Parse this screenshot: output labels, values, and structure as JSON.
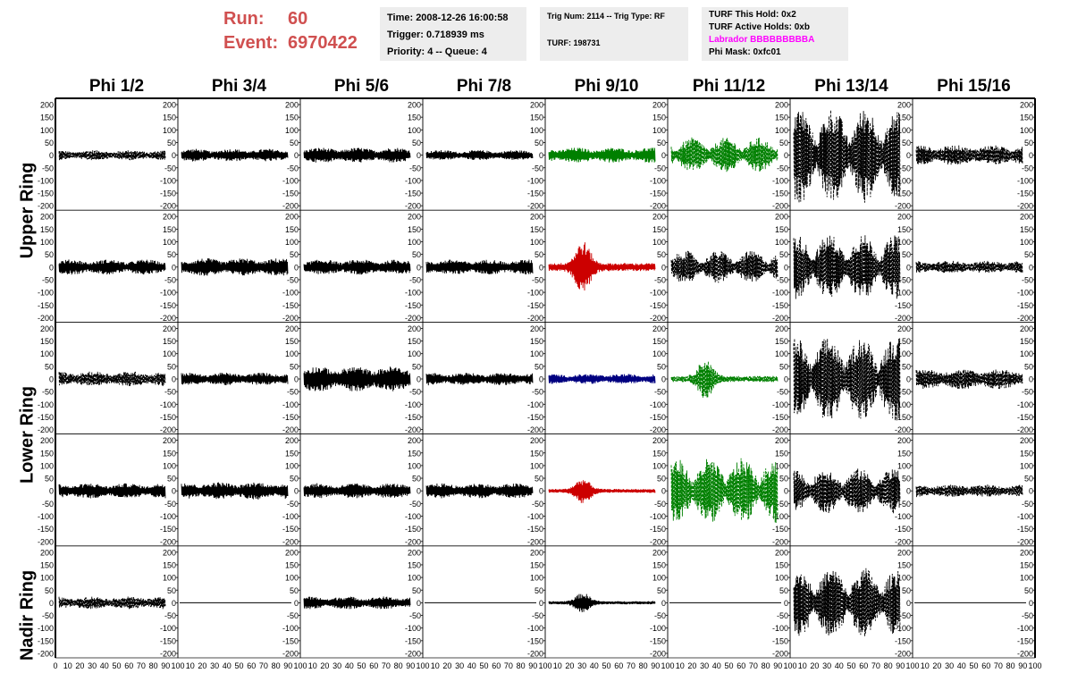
{
  "header": {
    "run_label": "Run:",
    "run_value": "60",
    "event_label": "Event:",
    "event_value": "6970422",
    "box1": [
      "Time: 2008-12-26 16:00:58",
      "Trigger: 0.718939 ms",
      "Priority: 4 -- Queue: 4"
    ],
    "box2": [
      "Trig Num: 2114 -- Trig Type: RF",
      "",
      "TURF: 198731"
    ],
    "box3": [
      "TURF This Hold: 0x2",
      "TURF Active Holds: 0xb",
      "Labrador BBBBBBBBBA",
      "Phi Mask: 0xfc01"
    ]
  },
  "colors": {
    "run_text": "#d05050",
    "labrador": "#ff00ff",
    "black": "#000000",
    "green": "#008000",
    "red": "#cc0000",
    "blue": "#000080"
  },
  "chart_data": {
    "type": "line",
    "columns": [
      "Phi 1/2",
      "Phi 3/4",
      "Phi 5/6",
      "Phi 7/8",
      "Phi 9/10",
      "Phi 11/12",
      "Phi 13/14",
      "Phi 15/16"
    ],
    "ring_labels": [
      "Upper Ring",
      "Lower Ring",
      "Nadir Ring"
    ],
    "ring_spans": [
      [
        0,
        1
      ],
      [
        2,
        3
      ],
      [
        4,
        4
      ]
    ],
    "ylim": [
      -200,
      200
    ],
    "xlim": [
      0,
      100
    ],
    "y_ticks": [
      "200",
      "150",
      "100",
      "50",
      "0",
      "-50",
      "-100",
      "-150",
      "-200"
    ],
    "x_ticks": [
      "0",
      "10",
      "20",
      "30",
      "40",
      "50",
      "60",
      "70",
      "80",
      "90",
      "100"
    ],
    "panels": [
      [
        {
          "amp": 20,
          "style": "dashed",
          "color": "black",
          "envelope": "flat"
        },
        {
          "amp": 25,
          "style": "solid",
          "color": "black",
          "envelope": "flat"
        },
        {
          "amp": 30,
          "style": "solid",
          "color": "black",
          "envelope": "flat"
        },
        {
          "amp": 20,
          "style": "solid",
          "color": "black",
          "envelope": "flat"
        },
        {
          "amp": 30,
          "style": "solid",
          "color": "green",
          "envelope": "flat"
        },
        {
          "amp": 70,
          "style": "dashed",
          "color": "green",
          "envelope": "beat"
        },
        {
          "amp": 190,
          "style": "dashed",
          "color": "black",
          "envelope": "beat"
        },
        {
          "amp": 40,
          "style": "dashed",
          "color": "black",
          "envelope": "flat"
        }
      ],
      [
        {
          "amp": 30,
          "style": "solid",
          "color": "black",
          "envelope": "flat"
        },
        {
          "amp": 35,
          "style": "solid",
          "color": "black",
          "envelope": "flat"
        },
        {
          "amp": 30,
          "style": "solid",
          "color": "black",
          "envelope": "flat"
        },
        {
          "amp": 30,
          "style": "solid",
          "color": "black",
          "envelope": "flat"
        },
        {
          "amp": 105,
          "style": "solid",
          "color": "red",
          "envelope": "pulse"
        },
        {
          "amp": 65,
          "style": "dashed",
          "color": "black",
          "envelope": "beat"
        },
        {
          "amp": 130,
          "style": "dashed",
          "color": "black",
          "envelope": "beat"
        },
        {
          "amp": 25,
          "style": "dashed",
          "color": "black",
          "envelope": "flat"
        }
      ],
      [
        {
          "amp": 30,
          "style": "dashed",
          "color": "black",
          "envelope": "flat"
        },
        {
          "amp": 25,
          "style": "solid",
          "color": "black",
          "envelope": "flat"
        },
        {
          "amp": 50,
          "style": "solid",
          "color": "black",
          "envelope": "flat"
        },
        {
          "amp": 25,
          "style": "solid",
          "color": "black",
          "envelope": "flat"
        },
        {
          "amp": 20,
          "style": "solid",
          "color": "blue",
          "envelope": "flat"
        },
        {
          "amp": 80,
          "style": "dashed",
          "color": "green",
          "envelope": "pulse"
        },
        {
          "amp": 170,
          "style": "dashed",
          "color": "black",
          "envelope": "beat"
        },
        {
          "amp": 40,
          "style": "dashed",
          "color": "black",
          "envelope": "flat"
        }
      ],
      [
        {
          "amp": 30,
          "style": "solid",
          "color": "black",
          "envelope": "flat"
        },
        {
          "amp": 35,
          "style": "solid",
          "color": "black",
          "envelope": "flat"
        },
        {
          "amp": 30,
          "style": "solid",
          "color": "black",
          "envelope": "flat"
        },
        {
          "amp": 30,
          "style": "solid",
          "color": "black",
          "envelope": "flat"
        },
        {
          "amp": 50,
          "style": "solid",
          "color": "red",
          "envelope": "pulse"
        },
        {
          "amp": 130,
          "style": "dashed",
          "color": "green",
          "envelope": "beat"
        },
        {
          "amp": 90,
          "style": "dashed",
          "color": "black",
          "envelope": "beat"
        },
        {
          "amp": 25,
          "style": "dashed",
          "color": "black",
          "envelope": "flat"
        }
      ],
      [
        {
          "amp": 25,
          "style": "dashed",
          "color": "black",
          "envelope": "flat"
        },
        {
          "amp": 0,
          "style": "solid",
          "color": "black",
          "envelope": "flat"
        },
        {
          "amp": 25,
          "style": "solid",
          "color": "black",
          "envelope": "flat"
        },
        {
          "amp": 0,
          "style": "solid",
          "color": "black",
          "envelope": "flat"
        },
        {
          "amp": 40,
          "style": "solid",
          "color": "black",
          "envelope": "pulse"
        },
        {
          "amp": 0,
          "style": "solid",
          "color": "black",
          "envelope": "flat"
        },
        {
          "amp": 140,
          "style": "dashed",
          "color": "black",
          "envelope": "beat"
        },
        {
          "amp": 0,
          "style": "solid",
          "color": "black",
          "envelope": "flat"
        }
      ]
    ]
  }
}
